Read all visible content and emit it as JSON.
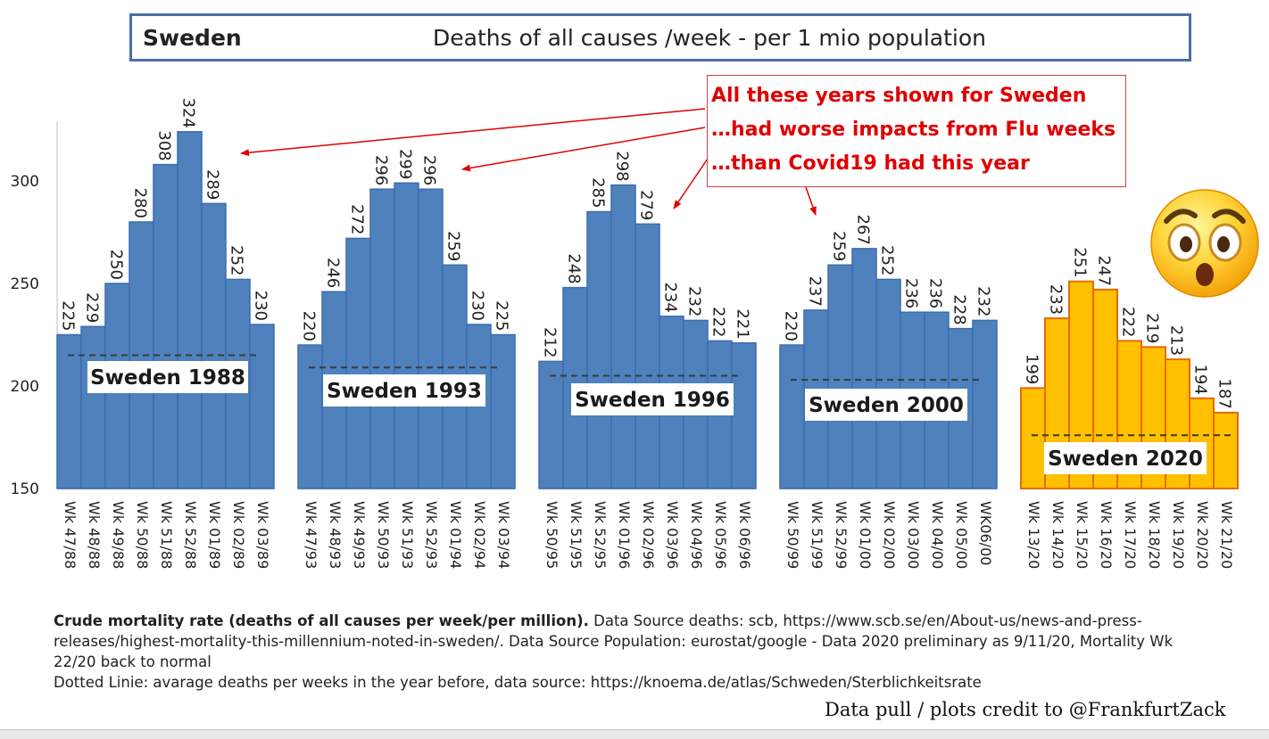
{
  "title": {
    "country": "Sweden",
    "subtitle": "Deaths of all causes /week  - per 1  mio  population"
  },
  "callout": {
    "lines": [
      "All these years shown for Sweden",
      "…had worse impacts from Flu weeks",
      "…than Covid19 had this year"
    ]
  },
  "chart_data": {
    "type": "bar",
    "ylim": [
      150,
      330
    ],
    "yticks": [
      150,
      200,
      250,
      300
    ],
    "grid": false,
    "colors": {
      "blue": "#4f81bd",
      "blue_edge": "#3b6db0",
      "gold": "#ffc000",
      "gold_edge": "#e36c09"
    },
    "groups": [
      {
        "label": "Sweden 1988",
        "baseline": 215,
        "highlight": false,
        "categories": [
          "Wk 47/88",
          "Wk 48/88",
          "Wk 49/88",
          "Wk 50/88",
          "Wk 51/88",
          "Wk 52/88",
          "Wk 01/89",
          "Wk 02/89",
          "Wk 03/89"
        ],
        "values": [
          225,
          229,
          250,
          280,
          308,
          324,
          289,
          252,
          230
        ]
      },
      {
        "label": "Sweden 1993",
        "baseline": 209,
        "highlight": false,
        "categories": [
          "Wk 47/93",
          "Wk 48/93",
          "Wk 49/93",
          "Wk 50/93",
          "Wk 51/93",
          "Wk 52/93",
          "Wk 01/94",
          "Wk 02/94",
          "Wk 03/94"
        ],
        "values": [
          220,
          246,
          272,
          296,
          299,
          296,
          259,
          230,
          225
        ]
      },
      {
        "label": "Sweden 1996",
        "baseline": 205,
        "highlight": false,
        "categories": [
          "Wk 50/95",
          "Wk 51/95",
          "Wk 52/95",
          "Wk 01/96",
          "Wk 02/96",
          "Wk 03/96",
          "Wk 04/96",
          "Wk 05/96",
          "Wk 06/96"
        ],
        "values": [
          212,
          248,
          285,
          298,
          279,
          234,
          232,
          222,
          221
        ]
      },
      {
        "label": "Sweden 2000",
        "baseline": 203,
        "highlight": false,
        "categories": [
          "Wk 50/99",
          "Wk 51/99",
          "Wk 52/99",
          "Wk 01/00",
          "Wk 02/00",
          "Wk 03/00",
          "Wk 04/00",
          "Wk 05/00",
          "WK06/00"
        ],
        "values": [
          220,
          237,
          259,
          267,
          252,
          236,
          236,
          228,
          232
        ]
      },
      {
        "label": "Sweden 2020",
        "baseline": 176,
        "highlight": true,
        "categories": [
          "Wk 13/20",
          "Wk 14/20",
          "Wk 15/20",
          "Wk 16/20",
          "Wk 17/20",
          "Wk 18/20",
          "Wk 19/20",
          "Wk 20/20",
          "Wk 21/20"
        ],
        "values": [
          199,
          233,
          251,
          247,
          222,
          219,
          213,
          194,
          187
        ]
      }
    ]
  },
  "footer": {
    "bold_part": "Crude mortality rate (deaths of all causes per week/per million).",
    "text_part": " Data Source deaths: scb, https://www.scb.se/en/About-us/news-and-press-releases/highest-mortality-this-millennium-noted-in-sweden/. Data Source Population: eurostat/google -  Data 2020 preliminary as 9/11/20, Mortality Wk 22/20 back to normal",
    "line2": "Dotted Linie: avarage deaths per weeks in the year before, data source: https://knoema.de/atlas/Schweden/Sterblichkeitsrate"
  },
  "credit": "Data pull / plots credit to @FrankfurtZack",
  "emoji_icon": "astonished-face-icon"
}
